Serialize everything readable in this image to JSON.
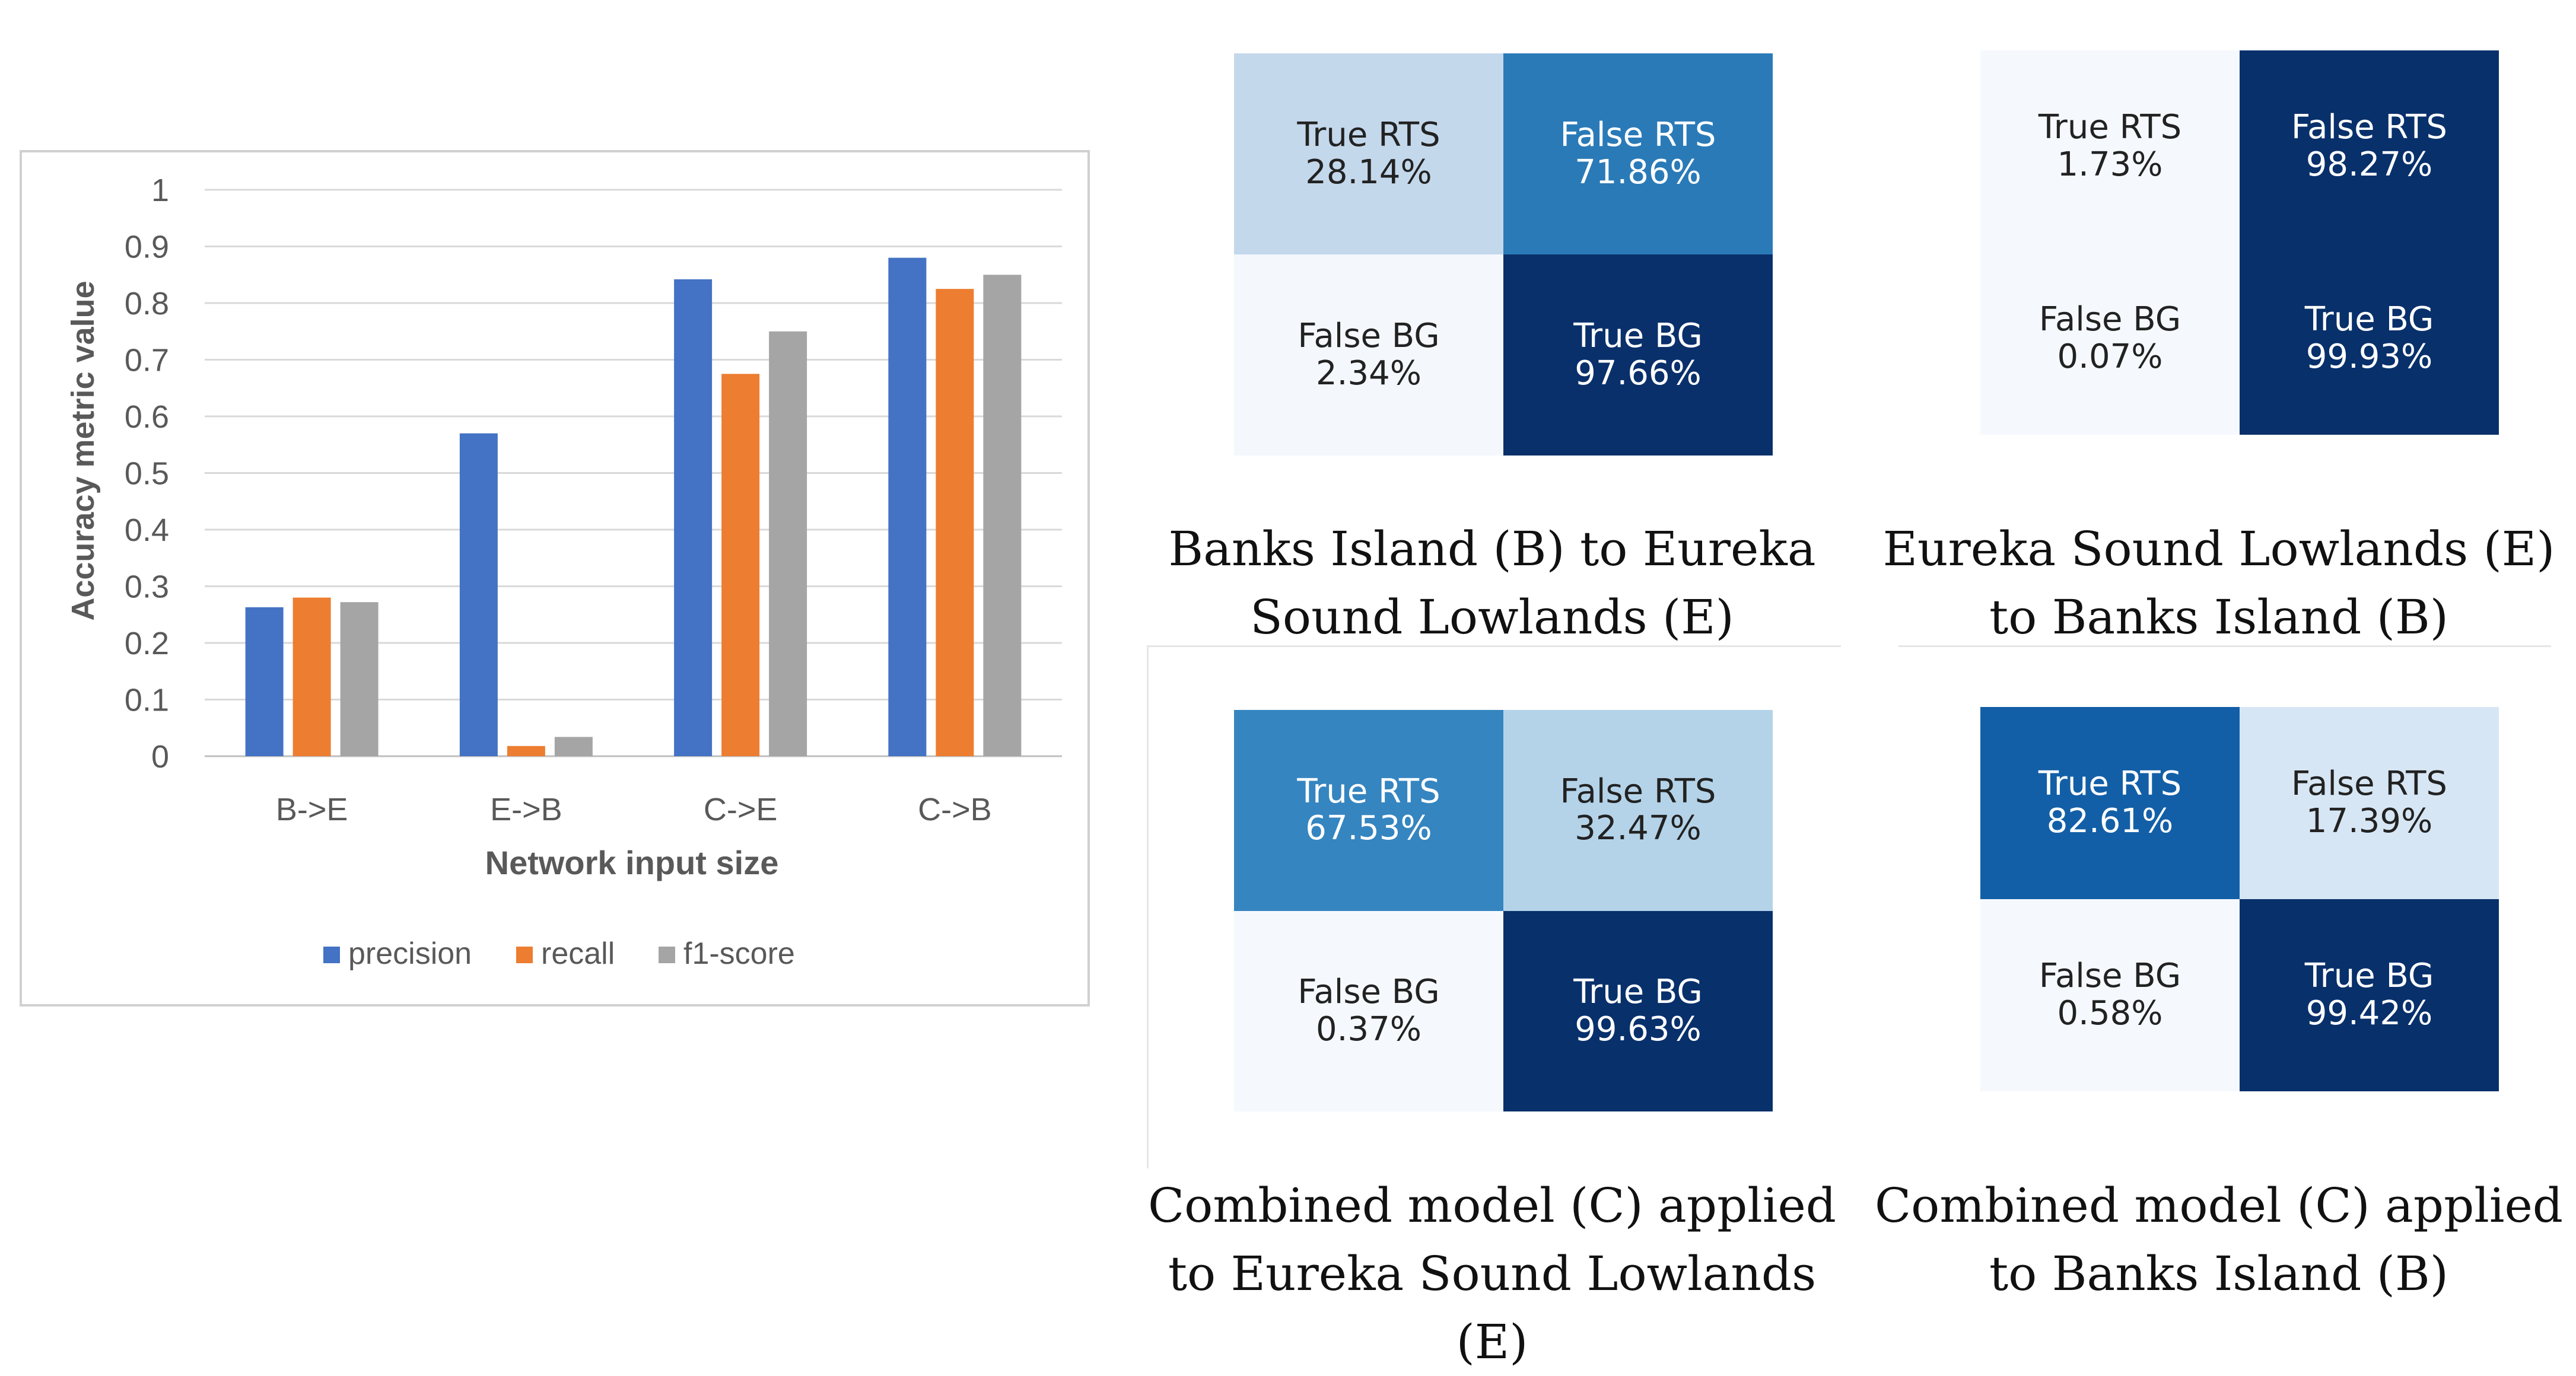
{
  "colors": {
    "precision": "#4472c4",
    "recall": "#ed7d31",
    "f1": "#a5a5a5",
    "axis_text": "#595959",
    "grid": "#d9d9d9",
    "frame": "#d0d0d0"
  },
  "chart_data": [
    {
      "type": "bar",
      "title": "",
      "xlabel": "Network input size",
      "ylabel": "Accuracy metric value",
      "ylim": [
        0,
        1
      ],
      "yticks": [
        "0",
        "0.1",
        "0.2",
        "0.3",
        "0.4",
        "0.5",
        "0.6",
        "0.7",
        "0.8",
        "0.9",
        "1"
      ],
      "categories": [
        "B->E",
        "E->B",
        "C->E",
        "C->B"
      ],
      "series": [
        {
          "name": "precision",
          "values": [
            0.263,
            0.57,
            0.842,
            0.88
          ]
        },
        {
          "name": "recall",
          "values": [
            0.28,
            0.018,
            0.675,
            0.825
          ]
        },
        {
          "name": "f1-score",
          "values": [
            0.272,
            0.034,
            0.75,
            0.85
          ]
        }
      ],
      "legend": "bottom",
      "grid": true
    },
    {
      "type": "table",
      "title": "Banks Island (B) to Eureka Sound Lowlands (E)",
      "cells": [
        {
          "label": "True RTS",
          "value": "28.14%",
          "shade": "#c4d8ec",
          "text": "#222222"
        },
        {
          "label": "False RTS",
          "value": "71.86%",
          "shade": "#2a7ab8",
          "text": "#ffffff"
        },
        {
          "label": "False BG",
          "value": "2.34%",
          "shade": "#f4f8fd",
          "text": "#222222"
        },
        {
          "label": "True BG",
          "value": "97.66%",
          "shade": "#0a306b",
          "text": "#ffffff"
        }
      ]
    },
    {
      "type": "table",
      "title": "Eureka Sound Lowlands (E) to Banks Island (B)",
      "cells": [
        {
          "label": "True RTS",
          "value": "1.73%",
          "shade": "#f5f9fe",
          "text": "#222222"
        },
        {
          "label": "False RTS",
          "value": "98.27%",
          "shade": "#08306b",
          "text": "#ffffff"
        },
        {
          "label": "False BG",
          "value": "0.07%",
          "shade": "#f5f9fe",
          "text": "#222222"
        },
        {
          "label": "True BG",
          "value": "99.93%",
          "shade": "#08306b",
          "text": "#ffffff"
        }
      ]
    },
    {
      "type": "table",
      "title": "Combined model (C) applied to Eureka Sound Lowlands (E)",
      "cells": [
        {
          "label": "True RTS",
          "value": "67.53%",
          "shade": "#3585c0",
          "text": "#ffffff"
        },
        {
          "label": "False RTS",
          "value": "32.47%",
          "shade": "#b4d3e9",
          "text": "#222222"
        },
        {
          "label": "False BG",
          "value": "0.37%",
          "shade": "#f5f9fe",
          "text": "#222222"
        },
        {
          "label": "True BG",
          "value": "99.63%",
          "shade": "#08306b",
          "text": "#ffffff"
        }
      ]
    },
    {
      "type": "table",
      "title": "Combined model (C) applied to Banks Island (B)",
      "cells": [
        {
          "label": "True RTS",
          "value": "82.61%",
          "shade": "#135fa7",
          "text": "#ffffff"
        },
        {
          "label": "False RTS",
          "value": "17.39%",
          "shade": "#d7e6f4",
          "text": "#222222"
        },
        {
          "label": "False BG",
          "value": "0.58%",
          "shade": "#f5f9fe",
          "text": "#222222"
        },
        {
          "label": "True BG",
          "value": "99.42%",
          "shade": "#08306b",
          "text": "#ffffff"
        }
      ]
    }
  ],
  "captions": [
    {
      "line1": "Banks Island (B) to Eureka",
      "line2": "Sound Lowlands (E)"
    },
    {
      "line1": "Eureka Sound Lowlands (E)",
      "line2": "to Banks Island (B)"
    },
    {
      "line1": "Combined model (C) applied",
      "line2": "to Eureka Sound Lowlands (E)"
    },
    {
      "line1": "Combined model (C) applied",
      "line2": "to Banks Island (B)"
    }
  ]
}
